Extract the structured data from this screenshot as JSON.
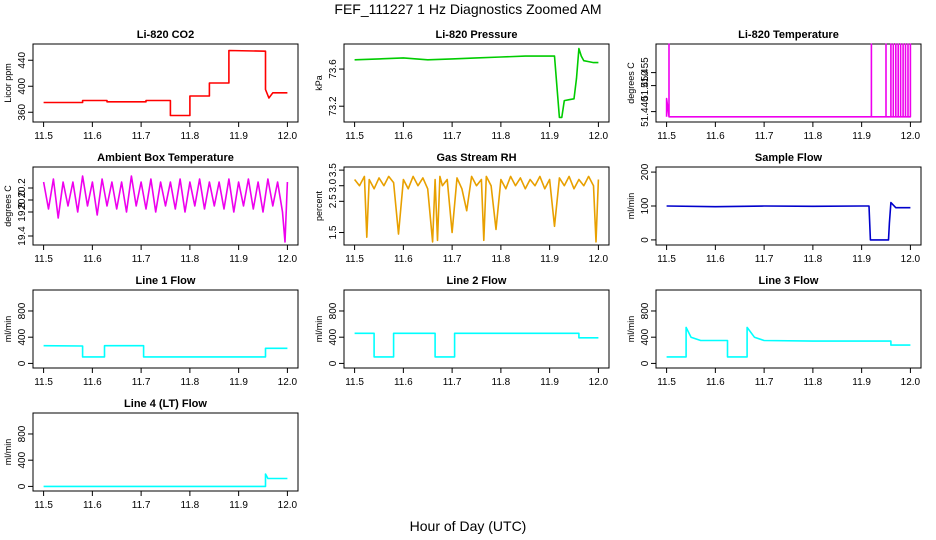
{
  "figure": {
    "title": "FEF_111227  1 Hz Diagnostics Zoomed AM",
    "xlabel": "Hour of Day (UTC)"
  },
  "chart_data": [
    {
      "type": "line",
      "title": "Li-820 CO2",
      "ylabel": "Licor ppm",
      "color": "#ff0000",
      "xlim": [
        11.5,
        12.0
      ],
      "ylim": [
        345,
        465
      ],
      "xticks": [
        "11.5",
        "11.6",
        "11.7",
        "11.8",
        "11.9",
        "12.0"
      ],
      "yticks": [
        {
          "v": 360,
          "label": "360"
        },
        {
          "v": 400,
          "label": "400"
        },
        {
          "v": 440,
          "label": "440"
        }
      ],
      "x": [
        11.5,
        11.58,
        11.58,
        11.63,
        11.63,
        11.71,
        11.71,
        11.76,
        11.76,
        11.8,
        11.8,
        11.84,
        11.84,
        11.88,
        11.88,
        11.955,
        11.955,
        11.962,
        11.962,
        11.97,
        11.97,
        12.0
      ],
      "y": [
        375,
        375,
        378,
        378,
        376,
        376,
        378,
        378,
        355,
        355,
        385,
        385,
        405,
        405,
        455,
        454,
        395,
        382,
        382,
        390,
        390,
        390
      ]
    },
    {
      "type": "line",
      "title": "Li-820 Pressure",
      "ylabel": "kPa",
      "color": "#00cc00",
      "xlim": [
        11.5,
        12.0
      ],
      "ylim": [
        73.03,
        73.87
      ],
      "xticks": [
        "11.5",
        "11.6",
        "11.7",
        "11.8",
        "11.9",
        "12.0"
      ],
      "yticks": [
        {
          "v": 73.2,
          "label": "73.2"
        },
        {
          "v": 73.6,
          "label": "73.6"
        }
      ],
      "x": [
        11.5,
        11.55,
        11.6,
        11.65,
        11.7,
        11.75,
        11.8,
        11.85,
        11.9,
        11.91,
        11.915,
        11.92,
        11.925,
        11.93,
        11.94,
        11.95,
        11.955,
        11.96,
        11.965,
        11.97,
        11.98,
        11.99,
        12.0
      ],
      "y": [
        73.7,
        73.71,
        73.72,
        73.7,
        73.71,
        73.72,
        73.73,
        73.74,
        73.74,
        73.74,
        73.4,
        73.08,
        73.08,
        73.26,
        73.27,
        73.28,
        73.5,
        73.82,
        73.74,
        73.69,
        73.68,
        73.67,
        73.67
      ]
    },
    {
      "type": "line",
      "title": "Li-820 Temperature",
      "ylabel": "degrees C",
      "color": "#ee00ee",
      "xlim": [
        11.5,
        12.0
      ],
      "ylim": [
        51.436,
        51.466
      ],
      "xticks": [
        "11.5",
        "11.6",
        "11.7",
        "11.8",
        "11.9",
        "12.0"
      ],
      "yticks": [
        {
          "v": 51.44,
          "label": "51.440"
        },
        {
          "v": 51.45,
          "label": "51.450"
        },
        {
          "v": 51.455,
          "label": "51.455"
        }
      ],
      "x": [
        11.5,
        11.5,
        11.505,
        11.505,
        11.505,
        11.92,
        11.92,
        11.92,
        11.95,
        11.95,
        11.95,
        11.96,
        11.96,
        11.96,
        11.965,
        11.965,
        11.965,
        11.97,
        11.97,
        11.97,
        11.975,
        11.975,
        11.975,
        11.98,
        11.98,
        11.98,
        11.985,
        11.985,
        11.985,
        11.99,
        11.99,
        11.99,
        11.995,
        11.995,
        11.995,
        12.0,
        12.0,
        12.0
      ],
      "y": [
        51.438,
        51.445,
        51.438,
        51.466,
        51.438,
        51.438,
        51.466,
        51.438,
        51.438,
        51.466,
        51.438,
        51.438,
        51.466,
        51.438,
        51.438,
        51.466,
        51.438,
        51.438,
        51.466,
        51.438,
        51.438,
        51.466,
        51.438,
        51.438,
        51.466,
        51.438,
        51.438,
        51.466,
        51.438,
        51.438,
        51.466,
        51.438,
        51.438,
        51.466,
        51.438,
        51.438,
        51.466,
        51.438
      ]
    },
    {
      "type": "line",
      "title": "Ambient Box Temperature",
      "ylabel": "degrees C",
      "color": "#ee00ee",
      "xlim": [
        11.5,
        12.0
      ],
      "ylim": [
        19.25,
        20.55
      ],
      "xticks": [
        "11.5",
        "11.6",
        "11.7",
        "11.8",
        "11.9",
        "12.0"
      ],
      "yticks": [
        {
          "v": 19.4,
          "label": "19.4"
        },
        {
          "v": 19.8,
          "label": "19.8"
        },
        {
          "v": 20.0,
          "label": "20.0"
        },
        {
          "v": 20.2,
          "label": "20.2"
        }
      ],
      "x": [
        11.5,
        11.51,
        11.52,
        11.53,
        11.54,
        11.55,
        11.56,
        11.57,
        11.58,
        11.59,
        11.6,
        11.61,
        11.62,
        11.63,
        11.64,
        11.65,
        11.66,
        11.67,
        11.68,
        11.69,
        11.7,
        11.71,
        11.72,
        11.73,
        11.74,
        11.75,
        11.76,
        11.77,
        11.78,
        11.79,
        11.8,
        11.81,
        11.82,
        11.83,
        11.84,
        11.85,
        11.86,
        11.87,
        11.88,
        11.89,
        11.9,
        11.91,
        11.92,
        11.93,
        11.94,
        11.95,
        11.96,
        11.97,
        11.98,
        11.99,
        11.995,
        12.0
      ],
      "y": [
        20.3,
        19.85,
        20.35,
        19.7,
        20.3,
        19.9,
        20.3,
        19.8,
        20.4,
        19.9,
        20.3,
        19.75,
        20.35,
        19.9,
        20.3,
        19.85,
        20.3,
        19.8,
        20.4,
        19.9,
        20.3,
        19.85,
        20.35,
        19.8,
        20.3,
        19.9,
        20.3,
        19.85,
        20.35,
        19.8,
        20.3,
        19.9,
        20.35,
        19.85,
        20.3,
        19.9,
        20.3,
        19.85,
        20.35,
        19.8,
        20.3,
        19.9,
        20.35,
        19.85,
        20.3,
        19.8,
        20.35,
        19.9,
        20.3,
        19.8,
        19.3,
        20.3
      ]
    },
    {
      "type": "line",
      "title": "Gas Stream RH",
      "ylabel": "percent",
      "color": "#e8a000",
      "xlim": [
        11.5,
        12.0
      ],
      "ylim": [
        1.1,
        3.6
      ],
      "xticks": [
        "11.5",
        "11.6",
        "11.7",
        "11.8",
        "11.9",
        "12.0"
      ],
      "yticks": [
        {
          "v": 1.5,
          "label": "1.5"
        },
        {
          "v": 2.5,
          "label": "2.5"
        },
        {
          "v": 3.0,
          "label": "3.0"
        },
        {
          "v": 3.5,
          "label": "3.5"
        }
      ],
      "x": [
        11.5,
        11.51,
        11.52,
        11.525,
        11.53,
        11.54,
        11.55,
        11.56,
        11.57,
        11.58,
        11.59,
        11.6,
        11.61,
        11.62,
        11.63,
        11.64,
        11.65,
        11.66,
        11.665,
        11.67,
        11.675,
        11.68,
        11.69,
        11.7,
        11.71,
        11.72,
        11.73,
        11.74,
        11.75,
        11.76,
        11.765,
        11.77,
        11.78,
        11.79,
        11.8,
        11.81,
        11.82,
        11.83,
        11.84,
        11.85,
        11.86,
        11.87,
        11.88,
        11.89,
        11.9,
        11.91,
        11.92,
        11.93,
        11.94,
        11.95,
        11.96,
        11.97,
        11.98,
        11.99,
        11.995,
        12.0
      ],
      "y": [
        3.2,
        3.0,
        3.3,
        1.35,
        3.2,
        2.9,
        3.25,
        3.0,
        3.3,
        3.1,
        1.45,
        3.2,
        2.9,
        3.3,
        3.0,
        3.25,
        2.9,
        1.2,
        3.2,
        1.25,
        3.3,
        3.0,
        3.2,
        1.5,
        3.25,
        2.9,
        2.2,
        3.3,
        3.0,
        3.2,
        1.25,
        3.3,
        3.0,
        1.6,
        3.2,
        2.9,
        3.3,
        3.0,
        3.25,
        2.9,
        3.2,
        3.0,
        3.3,
        2.9,
        3.2,
        1.7,
        3.25,
        3.0,
        3.3,
        2.9,
        3.2,
        3.0,
        3.3,
        3.0,
        1.2,
        3.2
      ]
    },
    {
      "type": "line",
      "title": "Sample Flow",
      "ylabel": "ml/min",
      "color": "#0000cc",
      "xlim": [
        11.5,
        12.0
      ],
      "ylim": [
        -15,
        215
      ],
      "xticks": [
        "11.5",
        "11.6",
        "11.7",
        "11.8",
        "11.9",
        "12.0"
      ],
      "yticks": [
        {
          "v": 0,
          "label": "0"
        },
        {
          "v": 100,
          "label": "100"
        },
        {
          "v": 200,
          "label": "200"
        }
      ],
      "x": [
        11.5,
        11.6,
        11.7,
        11.8,
        11.9,
        11.915,
        11.918,
        11.955,
        11.957,
        11.96,
        11.97,
        11.98,
        12.0
      ],
      "y": [
        100,
        98,
        100,
        99,
        100,
        100,
        0,
        0,
        50,
        110,
        95,
        95,
        95
      ]
    },
    {
      "type": "line",
      "title": "Line 1 Flow",
      "ylabel": "ml/min",
      "color": "#00ffff",
      "xlim": [
        11.5,
        12.0
      ],
      "ylim": [
        -70,
        1120
      ],
      "xticks": [
        "11.5",
        "11.6",
        "11.7",
        "11.8",
        "11.9",
        "12.0"
      ],
      "yticks": [
        {
          "v": 0,
          "label": "0"
        },
        {
          "v": 400,
          "label": "400"
        },
        {
          "v": 800,
          "label": "800"
        }
      ],
      "x": [
        11.5,
        11.58,
        11.58,
        11.625,
        11.625,
        11.705,
        11.705,
        11.955,
        11.955,
        11.96,
        12.0
      ],
      "y": [
        270,
        265,
        100,
        100,
        270,
        270,
        100,
        100,
        230,
        230,
        230
      ]
    },
    {
      "type": "line",
      "title": "Line 2 Flow",
      "ylabel": "ml/min",
      "color": "#00ffff",
      "xlim": [
        11.5,
        12.0
      ],
      "ylim": [
        -70,
        1120
      ],
      "xticks": [
        "11.5",
        "11.6",
        "11.7",
        "11.8",
        "11.9",
        "12.0"
      ],
      "yticks": [
        {
          "v": 0,
          "label": "0"
        },
        {
          "v": 400,
          "label": "400"
        },
        {
          "v": 800,
          "label": "800"
        }
      ],
      "x": [
        11.5,
        11.54,
        11.54,
        11.58,
        11.58,
        11.665,
        11.665,
        11.705,
        11.705,
        11.96,
        11.96,
        12.0
      ],
      "y": [
        460,
        460,
        100,
        100,
        460,
        460,
        100,
        100,
        460,
        460,
        390,
        390
      ]
    },
    {
      "type": "line",
      "title": "Line 3 Flow",
      "ylabel": "ml/min",
      "color": "#00ffff",
      "xlim": [
        11.5,
        12.0
      ],
      "ylim": [
        -70,
        1120
      ],
      "xticks": [
        "11.5",
        "11.6",
        "11.7",
        "11.8",
        "11.9",
        "12.0"
      ],
      "yticks": [
        {
          "v": 0,
          "label": "0"
        },
        {
          "v": 400,
          "label": "400"
        },
        {
          "v": 800,
          "label": "800"
        }
      ],
      "x": [
        11.5,
        11.54,
        11.54,
        11.55,
        11.57,
        11.625,
        11.625,
        11.665,
        11.665,
        11.68,
        11.7,
        11.8,
        11.96,
        11.96,
        12.0
      ],
      "y": [
        100,
        100,
        550,
        400,
        350,
        350,
        100,
        100,
        550,
        400,
        350,
        340,
        340,
        280,
        280
      ]
    },
    {
      "type": "line",
      "title": "Line 4 (LT) Flow",
      "ylabel": "ml/min",
      "color": "#00ffff",
      "xlim": [
        11.5,
        12.0
      ],
      "ylim": [
        -70,
        1120
      ],
      "xticks": [
        "11.5",
        "11.6",
        "11.7",
        "11.8",
        "11.9",
        "12.0"
      ],
      "yticks": [
        {
          "v": 0,
          "label": "0"
        },
        {
          "v": 400,
          "label": "400"
        },
        {
          "v": 800,
          "label": "800"
        }
      ],
      "x": [
        11.5,
        11.955,
        11.955,
        11.96,
        11.965,
        12.0
      ],
      "y": [
        0,
        0,
        190,
        120,
        120,
        120
      ]
    }
  ]
}
